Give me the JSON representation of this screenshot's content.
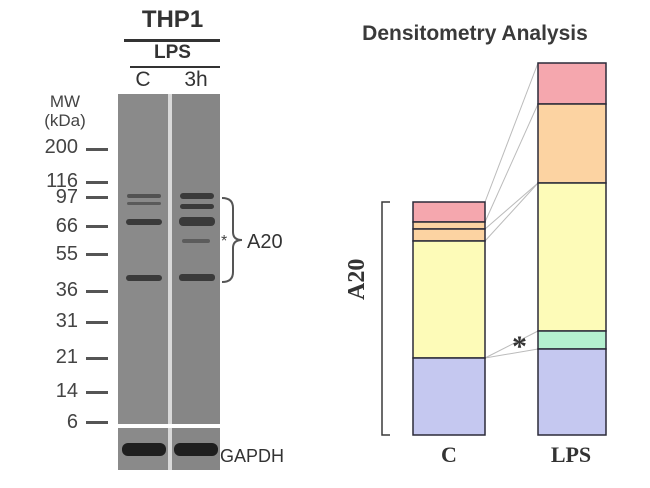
{
  "blot": {
    "cell_line": "THP1",
    "treatment": "LPS",
    "lanes": [
      "C",
      "3h"
    ],
    "mw_title_line1": "MW",
    "mw_title_line2": "(kDa)",
    "mw_markers": [
      "200",
      "116",
      "97",
      "66",
      "55",
      "36",
      "31",
      "21",
      "14",
      "6"
    ],
    "band_label": "A20",
    "asterisk": "*",
    "loading_control": "GAPDH"
  },
  "densitometry": {
    "title": "Densitometry Analysis",
    "bracket_label": "A20",
    "asterisk": "*",
    "columns": [
      "C",
      "LPS"
    ],
    "colors": {
      "blue": "#c5c8f0",
      "green": "#b4f0cf",
      "yellow": "#fdfbb8",
      "orange": "#fcd3a2",
      "pink": "#f5a7ae",
      "outline": "#2b2a38"
    }
  }
}
